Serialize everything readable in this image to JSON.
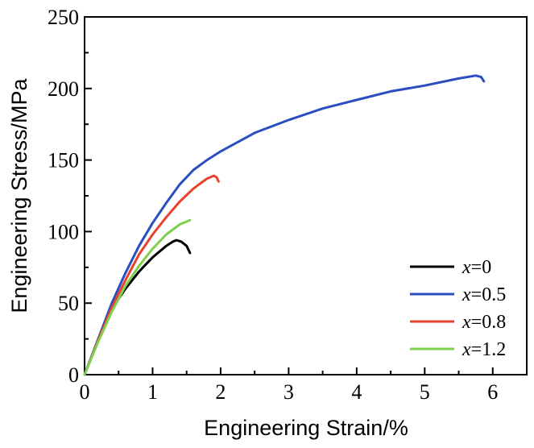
{
  "chart_data": {
    "type": "line",
    "title": "",
    "xlabel": "Engineering Strain/%",
    "ylabel": "Engineering Stress/MPa",
    "xlim": [
      0,
      6.5
    ],
    "ylim": [
      0,
      250
    ],
    "xticks": [
      "0",
      "1",
      "2",
      "3",
      "4",
      "5",
      "6"
    ],
    "yticks": [
      "0",
      "50",
      "100",
      "150",
      "200",
      "250"
    ],
    "grid": false,
    "legend_position": "bottom-right",
    "series": [
      {
        "name": "x=0",
        "legend_var": "x",
        "legend_value": "=0",
        "color": "#000000",
        "points": [
          [
            0,
            0
          ],
          [
            0.1,
            12
          ],
          [
            0.2,
            24
          ],
          [
            0.3,
            35
          ],
          [
            0.4,
            45
          ],
          [
            0.5,
            53
          ],
          [
            0.6,
            60
          ],
          [
            0.7,
            66
          ],
          [
            0.8,
            72
          ],
          [
            0.9,
            77
          ],
          [
            1.0,
            82
          ],
          [
            1.1,
            86
          ],
          [
            1.2,
            90
          ],
          [
            1.3,
            93
          ],
          [
            1.35,
            94
          ],
          [
            1.42,
            93
          ],
          [
            1.5,
            90
          ],
          [
            1.55,
            85
          ]
        ]
      },
      {
        "name": "x=0.5",
        "legend_var": "x",
        "legend_value": "=0.5",
        "color": "#2a4ec0",
        "points": [
          [
            0,
            0
          ],
          [
            0.2,
            25
          ],
          [
            0.4,
            50
          ],
          [
            0.6,
            71
          ],
          [
            0.8,
            90
          ],
          [
            1.0,
            106
          ],
          [
            1.2,
            120
          ],
          [
            1.4,
            133
          ],
          [
            1.6,
            143
          ],
          [
            1.8,
            150
          ],
          [
            2.0,
            156
          ],
          [
            2.5,
            169
          ],
          [
            3.0,
            178
          ],
          [
            3.5,
            186
          ],
          [
            4.0,
            192
          ],
          [
            4.5,
            198
          ],
          [
            5.0,
            202
          ],
          [
            5.5,
            207
          ],
          [
            5.75,
            209
          ],
          [
            5.83,
            208
          ],
          [
            5.87,
            205
          ]
        ]
      },
      {
        "name": "x=0.8",
        "legend_var": "x",
        "legend_value": "=0.8",
        "color": "#e8422e",
        "points": [
          [
            0,
            0
          ],
          [
            0.2,
            24
          ],
          [
            0.4,
            47
          ],
          [
            0.6,
            66
          ],
          [
            0.8,
            84
          ],
          [
            1.0,
            98
          ],
          [
            1.2,
            110
          ],
          [
            1.4,
            121
          ],
          [
            1.6,
            130
          ],
          [
            1.8,
            137
          ],
          [
            1.9,
            139
          ],
          [
            1.94,
            138
          ],
          [
            1.97,
            135
          ]
        ]
      },
      {
        "name": "x=1.2",
        "legend_var": "x",
        "legend_value": "=1.2",
        "color": "#7ed04e",
        "points": [
          [
            0,
            0
          ],
          [
            0.2,
            23
          ],
          [
            0.4,
            44
          ],
          [
            0.6,
            62
          ],
          [
            0.8,
            76
          ],
          [
            1.0,
            88
          ],
          [
            1.2,
            98
          ],
          [
            1.4,
            105
          ],
          [
            1.55,
            108
          ]
        ]
      }
    ]
  }
}
